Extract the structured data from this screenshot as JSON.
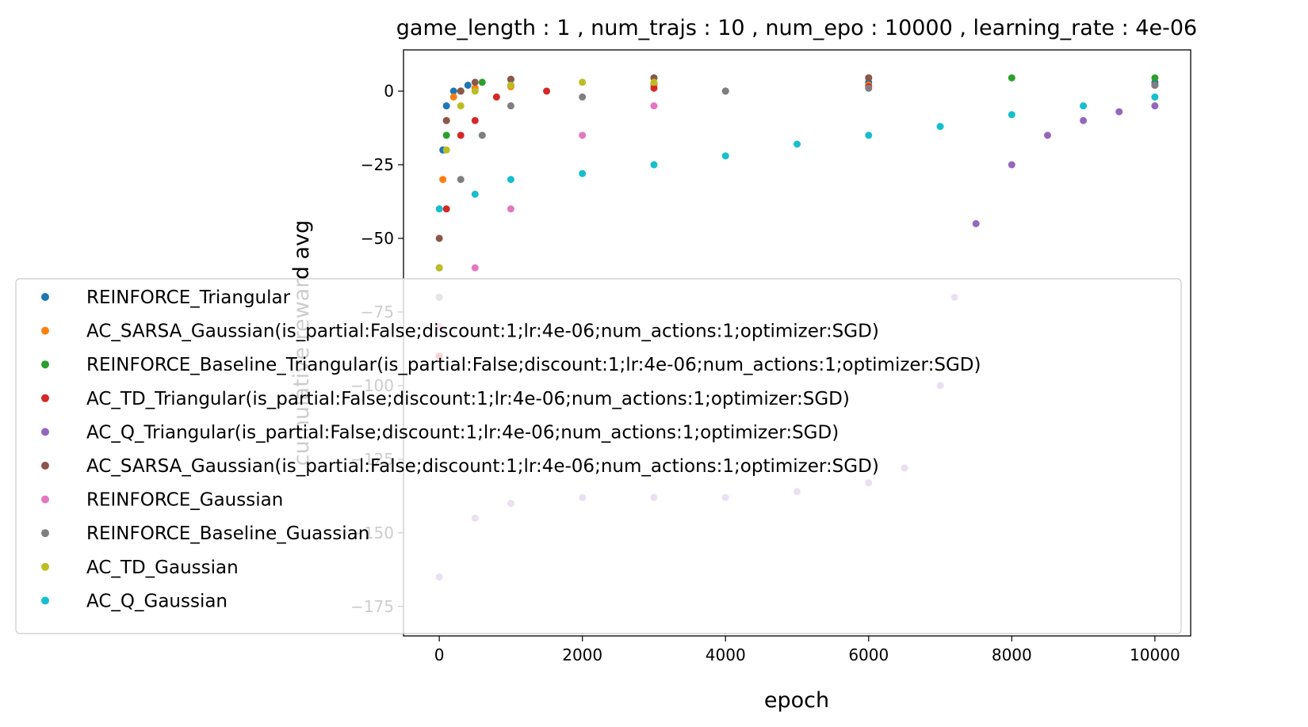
{
  "chart_data": {
    "type": "scatter",
    "title": "game_length : 1 , num_trajs : 10 , num_epo : 10000 , learning_rate : 4e-06",
    "xlabel": "epoch",
    "ylabel": "cumulative reward avg",
    "xlim": [
      -500,
      10500
    ],
    "ylim": [
      -185,
      14
    ],
    "xticks": [
      0,
      2000,
      4000,
      6000,
      8000,
      10000
    ],
    "yticks": [
      0,
      -25,
      -50,
      -75,
      -100,
      -125,
      -150,
      -175
    ],
    "grid": false,
    "legend_position": "center-left (overlapping plot)",
    "series": [
      {
        "name": "REINFORCE_Triangular",
        "color": "#1f77b4",
        "x": [
          0,
          50,
          100,
          200,
          400,
          1000,
          3000,
          6000,
          10000
        ],
        "y": [
          -60,
          -20,
          -5,
          0,
          2,
          2,
          2.5,
          3,
          3
        ]
      },
      {
        "name": "AC_SARSA_Gaussian(is_partial:False;discount:1;lr:4e-06;num_actions:1;optimizer:SGD)",
        "color": "#ff7f0e",
        "x": [
          0,
          50,
          100,
          200,
          300,
          500,
          1000,
          3000,
          6000,
          10000
        ],
        "y": [
          -80,
          -30,
          -10,
          -2,
          0,
          1,
          1.5,
          2,
          2,
          2
        ]
      },
      {
        "name": "REINFORCE_Baseline_Triangular(is_partial:False;discount:1;lr:4e-06;num_actions:1;optimizer:SGD)",
        "color": "#2ca02c",
        "x": [
          0,
          100,
          300,
          600,
          1000,
          3000,
          6000,
          8000,
          10000
        ],
        "y": [
          -70,
          -15,
          0,
          3,
          4,
          4.5,
          4.5,
          4.5,
          4.5
        ]
      },
      {
        "name": "AC_TD_Triangular(is_partial:False;discount:1;lr:4e-06;num_actions:1;optimizer:SGD)",
        "color": "#d62728",
        "x": [
          0,
          100,
          300,
          500,
          800,
          1500,
          3000,
          6000,
          10000
        ],
        "y": [
          -90,
          -40,
          -15,
          -10,
          -2,
          0,
          1,
          1.5,
          2
        ]
      },
      {
        "name": "AC_Q_Triangular(is_partial:False;discount:1;lr:4e-06;num_actions:1;optimizer:SGD)",
        "color": "#9467bd",
        "x": [
          0,
          500,
          1000,
          2000,
          3000,
          4000,
          5000,
          6000,
          6500,
          7000,
          7200,
          7500,
          8000,
          8500,
          9000,
          9500,
          10000
        ],
        "y": [
          -165,
          -145,
          -140,
          -138,
          -138,
          -138,
          -136,
          -133,
          -128,
          -100,
          -70,
          -45,
          -25,
          -15,
          -10,
          -7,
          -5
        ]
      },
      {
        "name": "AC_SARSA_Gaussian(is_partial:False;discount:1;lr:4e-06;num_actions:1;optimizer:SGD)",
        "color": "#8c564b",
        "x": [
          0,
          100,
          300,
          500,
          1000,
          3000,
          6000
        ],
        "y": [
          -50,
          -10,
          0,
          3,
          4,
          4.5,
          4.5
        ]
      },
      {
        "name": "REINFORCE_Gaussian",
        "color": "#e377c2",
        "x": [
          0,
          500,
          1000,
          2000,
          3000,
          4000,
          6000,
          10000
        ],
        "y": [
          -80,
          -60,
          -40,
          -15,
          -5,
          0,
          1,
          2
        ]
      },
      {
        "name": "REINFORCE_Baseline_Guassian",
        "color": "#7f7f7f",
        "x": [
          0,
          300,
          600,
          1000,
          2000,
          4000,
          6000,
          10000
        ],
        "y": [
          -70,
          -30,
          -15,
          -5,
          -2,
          0,
          1,
          2
        ]
      },
      {
        "name": "AC_TD_Gaussian",
        "color": "#bcbd22",
        "x": [
          0,
          100,
          300,
          500,
          1000,
          2000,
          3000
        ],
        "y": [
          -60,
          -20,
          -5,
          0,
          2,
          3,
          3
        ]
      },
      {
        "name": "AC_Q_Gaussian",
        "color": "#17becf",
        "x": [
          0,
          500,
          1000,
          2000,
          3000,
          4000,
          5000,
          6000,
          7000,
          8000,
          9000,
          10000
        ],
        "y": [
          -40,
          -35,
          -30,
          -28,
          -25,
          -22,
          -18,
          -15,
          -12,
          -8,
          -5,
          -2
        ]
      }
    ]
  }
}
